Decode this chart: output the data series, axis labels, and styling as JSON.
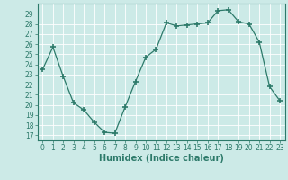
{
  "x": [
    0,
    1,
    2,
    3,
    4,
    5,
    6,
    7,
    8,
    9,
    10,
    11,
    12,
    13,
    14,
    15,
    16,
    17,
    18,
    19,
    20,
    21,
    22,
    23
  ],
  "y": [
    23.5,
    25.7,
    22.8,
    20.2,
    19.5,
    18.3,
    17.3,
    17.2,
    19.8,
    22.3,
    24.7,
    25.5,
    28.1,
    27.8,
    27.9,
    28.0,
    28.1,
    29.3,
    29.4,
    28.2,
    28.0,
    26.2,
    21.8,
    20.4
  ],
  "line_color": "#2d7a6a",
  "marker": "+",
  "marker_size": 4,
  "marker_lw": 1.2,
  "bg_color": "#cceae7",
  "grid_color": "#ffffff",
  "ylabel_ticks": [
    17,
    18,
    19,
    20,
    21,
    22,
    23,
    24,
    25,
    26,
    27,
    28,
    29
  ],
  "ylim": [
    16.5,
    30.0
  ],
  "xlim": [
    -0.5,
    23.5
  ],
  "xlabel": "Humidex (Indice chaleur)",
  "tick_fontsize": 5.5,
  "xlabel_fontsize": 7.0,
  "line_width": 0.9
}
